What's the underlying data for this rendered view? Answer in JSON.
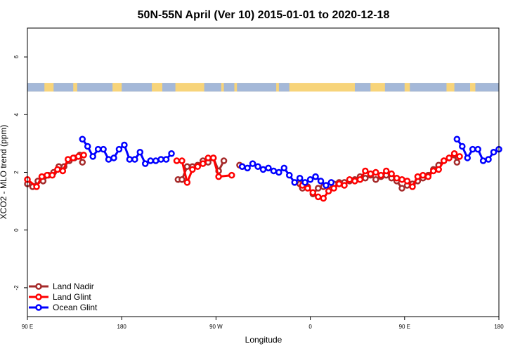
{
  "chart_data": {
    "type": "line",
    "title": "50N-55N April (Ver 10)   2015-01-01 to 2020-12-18",
    "xlabel": "Longitude",
    "ylabel": "XCO2 - MLO trend (ppm)",
    "xlim": [
      0,
      360
    ],
    "ylim": [
      -3,
      7
    ],
    "x_ticks": [
      {
        "value": 0,
        "label": "90 E"
      },
      {
        "value": 72,
        "label": "180"
      },
      {
        "value": 144,
        "label": "90 W"
      },
      {
        "value": 216,
        "label": "0"
      },
      {
        "value": 288,
        "label": "90 E"
      },
      {
        "value": 360,
        "label": "180"
      }
    ],
    "y_ticks": [
      {
        "value": -2,
        "label": "-2"
      },
      {
        "value": 0,
        "label": "0"
      },
      {
        "value": 2,
        "label": "2"
      },
      {
        "value": 4,
        "label": "4"
      },
      {
        "value": 6,
        "label": "6"
      }
    ],
    "legend_position": "bottom-left",
    "land_ocean_strip": {
      "ymin": 4.8,
      "ymax": 5.1,
      "ocean_color": "#a4b8d8",
      "land_color": "#f7d47a"
    },
    "series": [
      {
        "name": "Land Nadir",
        "color": "#a52a2a",
        "segments": [
          [
            [
              0,
              1.6
            ],
            [
              4,
              1.5
            ],
            [
              8,
              1.7
            ],
            [
              12,
              1.7
            ],
            [
              16,
              1.9
            ],
            [
              20,
              2.0
            ],
            [
              24,
              2.2
            ],
            [
              28,
              2.2
            ],
            [
              32,
              2.4
            ],
            [
              36,
              2.5
            ],
            [
              40,
              2.6
            ],
            [
              42,
              2.35
            ]
          ],
          [
            [
              115,
              1.75
            ],
            [
              118,
              1.75
            ],
            [
              122,
              2.2
            ],
            [
              126,
              2.2
            ],
            [
              130,
              2.25
            ],
            [
              134,
              2.4
            ],
            [
              138,
              2.35
            ],
            [
              142,
              2.5
            ],
            [
              146,
              2.05
            ],
            [
              150,
              2.4
            ]
          ],
          [
            [
              162,
              2.25
            ]
          ],
          [
            [
              208,
              1.6
            ],
            [
              210,
              1.45
            ],
            [
              214,
              1.5
            ],
            [
              218,
              1.25
            ],
            [
              222,
              1.45
            ],
            [
              226,
              1.5
            ],
            [
              230,
              1.55
            ],
            [
              234,
              1.6
            ],
            [
              238,
              1.65
            ],
            [
              242,
              1.65
            ],
            [
              246,
              1.7
            ],
            [
              250,
              1.75
            ],
            [
              254,
              1.85
            ],
            [
              258,
              1.8
            ],
            [
              262,
              1.9
            ],
            [
              266,
              1.75
            ],
            [
              270,
              1.85
            ],
            [
              274,
              1.9
            ],
            [
              278,
              1.8
            ],
            [
              282,
              1.7
            ],
            [
              286,
              1.45
            ],
            [
              290,
              1.55
            ],
            [
              294,
              1.6
            ],
            [
              298,
              1.7
            ],
            [
              302,
              1.8
            ],
            [
              306,
              1.9
            ],
            [
              310,
              2.1
            ],
            [
              314,
              2.25
            ],
            [
              318,
              2.4
            ],
            [
              322,
              2.5
            ],
            [
              326,
              2.6
            ],
            [
              328,
              2.35
            ]
          ]
        ]
      },
      {
        "name": "Land Glint",
        "color": "#ff0000",
        "segments": [
          [
            [
              0,
              1.75
            ],
            [
              7,
              1.5
            ],
            [
              11,
              1.85
            ],
            [
              15,
              1.9
            ],
            [
              19,
              1.9
            ],
            [
              23,
              2.1
            ],
            [
              27,
              2.05
            ],
            [
              31,
              2.45
            ],
            [
              35,
              2.5
            ],
            [
              39,
              2.55
            ],
            [
              43,
              2.6
            ]
          ],
          [
            [
              114,
              2.4
            ],
            [
              118,
              2.4
            ],
            [
              122,
              1.65
            ],
            [
              126,
              2.1
            ],
            [
              130,
              2.2
            ],
            [
              134,
              2.3
            ],
            [
              138,
              2.5
            ],
            [
              142,
              2.5
            ],
            [
              146,
              1.85
            ],
            [
              156,
              1.9
            ]
          ],
          [
            [
              164,
              2.2
            ]
          ],
          [
            [
              210,
              1.55
            ],
            [
              214,
              1.45
            ],
            [
              218,
              1.3
            ],
            [
              222,
              1.15
            ],
            [
              226,
              1.1
            ],
            [
              230,
              1.35
            ],
            [
              234,
              1.45
            ],
            [
              238,
              1.6
            ],
            [
              242,
              1.55
            ],
            [
              246,
              1.75
            ],
            [
              250,
              1.7
            ],
            [
              254,
              1.75
            ],
            [
              258,
              2.05
            ],
            [
              262,
              1.95
            ],
            [
              266,
              2.0
            ],
            [
              270,
              1.9
            ],
            [
              274,
              2.05
            ],
            [
              278,
              1.95
            ],
            [
              282,
              1.8
            ],
            [
              286,
              1.75
            ],
            [
              290,
              1.7
            ],
            [
              294,
              1.5
            ],
            [
              298,
              1.85
            ],
            [
              302,
              1.9
            ],
            [
              306,
              1.85
            ],
            [
              310,
              2.05
            ],
            [
              314,
              2.1
            ],
            [
              318,
              2.4
            ],
            [
              322,
              2.5
            ],
            [
              326,
              2.65
            ],
            [
              330,
              2.55
            ]
          ]
        ]
      },
      {
        "name": "Ocean Glint",
        "color": "#0000ff",
        "segments": [
          [
            [
              42,
              3.15
            ],
            [
              46,
              2.9
            ],
            [
              50,
              2.55
            ],
            [
              54,
              2.8
            ],
            [
              58,
              2.8
            ],
            [
              62,
              2.45
            ],
            [
              66,
              2.5
            ],
            [
              70,
              2.8
            ],
            [
              74,
              2.95
            ],
            [
              78,
              2.45
            ],
            [
              82,
              2.45
            ],
            [
              86,
              2.7
            ],
            [
              90,
              2.3
            ],
            [
              94,
              2.4
            ],
            [
              98,
              2.4
            ],
            [
              102,
              2.45
            ],
            [
              106,
              2.45
            ],
            [
              110,
              2.65
            ]
          ],
          [
            [
              164,
              2.2
            ],
            [
              168,
              2.15
            ],
            [
              172,
              2.3
            ],
            [
              176,
              2.2
            ],
            [
              180,
              2.1
            ],
            [
              184,
              2.15
            ],
            [
              188,
              2.05
            ],
            [
              192,
              2.0
            ],
            [
              196,
              2.15
            ],
            [
              200,
              1.9
            ],
            [
              204,
              1.65
            ],
            [
              208,
              1.8
            ],
            [
              212,
              1.65
            ],
            [
              216,
              1.75
            ],
            [
              220,
              1.85
            ],
            [
              224,
              1.7
            ],
            [
              228,
              1.55
            ],
            [
              232,
              1.65
            ]
          ],
          [
            [
              328,
              3.15
            ],
            [
              332,
              2.9
            ],
            [
              336,
              2.5
            ],
            [
              340,
              2.8
            ],
            [
              344,
              2.8
            ],
            [
              348,
              2.4
            ],
            [
              352,
              2.45
            ],
            [
              356,
              2.7
            ],
            [
              360,
              2.8
            ]
          ]
        ]
      }
    ]
  }
}
